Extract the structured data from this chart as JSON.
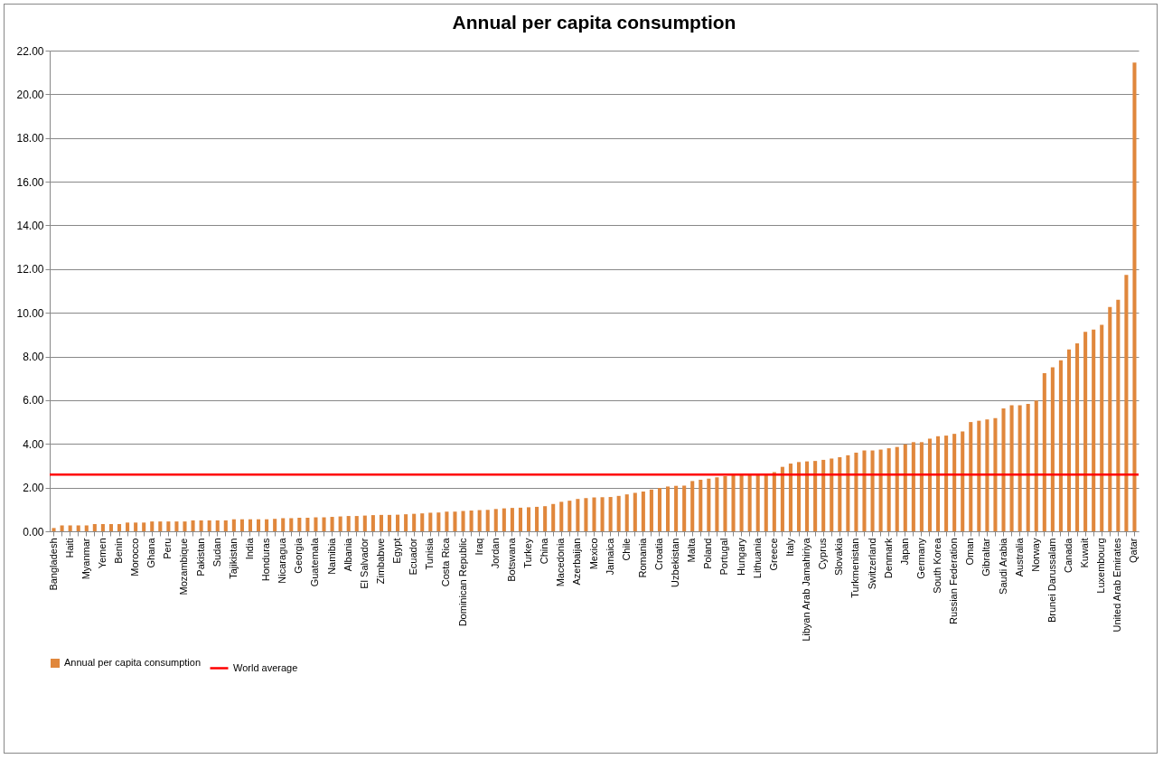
{
  "chart_data": {
    "type": "bar",
    "title": "Annual per capita consumption",
    "categories": [
      "Bangladesh",
      null,
      "Haiti",
      null,
      "Myanmar",
      null,
      "Yemen",
      null,
      "Benin",
      null,
      "Morocco",
      null,
      "Ghana",
      null,
      "Peru",
      null,
      "Mozambique",
      null,
      "Pakistan",
      null,
      "Sudan",
      null,
      "Tajikistan",
      null,
      "India",
      null,
      "Honduras",
      null,
      "Nicaragua",
      null,
      "Georgia",
      null,
      "Guatemala",
      null,
      "Namibia",
      null,
      "Albania",
      null,
      "El Salvador",
      null,
      "Zimbabwe",
      null,
      "Egypt",
      null,
      "Ecuador",
      null,
      "Tunisia",
      null,
      "Costa Rica",
      null,
      "Dominican Republic",
      null,
      "Iraq",
      null,
      "Jordan",
      null,
      "Botswana",
      null,
      "Turkey",
      null,
      "China",
      null,
      "Macedonia",
      null,
      "Azerbaijan",
      null,
      "Mexico",
      null,
      "Jamaica",
      null,
      "Chile",
      null,
      "Romania",
      null,
      "Croatia",
      null,
      "Uzbekistan",
      null,
      "Malta",
      null,
      "Poland",
      null,
      "Portugal",
      null,
      "Hungary",
      null,
      "Lithuania",
      null,
      "Greece",
      null,
      "Italy",
      null,
      "Libyan Arab Jamahiriya",
      null,
      "Cyprus",
      null,
      "Slovakia",
      null,
      "Turkmenistan",
      null,
      "Switzerland",
      null,
      "Denmark",
      null,
      "Japan",
      null,
      "Germany",
      null,
      "South Korea",
      null,
      "Russian Federation",
      null,
      "Oman",
      null,
      "Gibraltar",
      null,
      "Saudi Arabia",
      null,
      "Australia",
      null,
      "Norway",
      null,
      "Brunei Darussalam",
      null,
      "Canada",
      null,
      "Kuwait",
      null,
      "Luxembourg",
      null,
      "United Arab Emirates",
      null,
      "Qatar"
    ],
    "series": [
      {
        "name": "Annual per capita consumption",
        "color": "#e0873c",
        "values": [
          0.15,
          0.27,
          0.27,
          0.27,
          0.27,
          0.33,
          0.33,
          0.33,
          0.33,
          0.4,
          0.4,
          0.4,
          0.45,
          0.45,
          0.45,
          0.45,
          0.45,
          0.5,
          0.5,
          0.5,
          0.5,
          0.5,
          0.55,
          0.55,
          0.55,
          0.55,
          0.55,
          0.57,
          0.6,
          0.6,
          0.62,
          0.62,
          0.64,
          0.64,
          0.66,
          0.68,
          0.7,
          0.7,
          0.72,
          0.74,
          0.75,
          0.75,
          0.76,
          0.78,
          0.8,
          0.82,
          0.85,
          0.86,
          0.9,
          0.9,
          0.93,
          0.95,
          0.97,
          0.98,
          1.02,
          1.05,
          1.07,
          1.08,
          1.1,
          1.12,
          1.15,
          1.25,
          1.35,
          1.4,
          1.48,
          1.52,
          1.55,
          1.56,
          1.57,
          1.62,
          1.69,
          1.76,
          1.82,
          1.91,
          1.98,
          2.05,
          2.08,
          2.09,
          2.3,
          2.36,
          2.41,
          2.47,
          2.53,
          2.6,
          2.6,
          2.6,
          2.62,
          2.62,
          2.71,
          2.95,
          3.1,
          3.17,
          3.2,
          3.22,
          3.27,
          3.33,
          3.39,
          3.48,
          3.6,
          3.7,
          3.7,
          3.74,
          3.8,
          3.86,
          3.98,
          4.08,
          4.08,
          4.24,
          4.35,
          4.38,
          4.46,
          4.57,
          5.0,
          5.06,
          5.12,
          5.18,
          5.62,
          5.77,
          5.77,
          5.83,
          5.99,
          7.24,
          7.51,
          7.83,
          8.32,
          8.6,
          9.13,
          9.23,
          9.45,
          10.27,
          10.6,
          11.73,
          21.45
        ]
      }
    ],
    "ref_lines": [
      {
        "axis": "y",
        "value": 2.6,
        "label": "World average",
        "color": "#ff0000"
      }
    ],
    "ylim": [
      0,
      22
    ],
    "yticks": [
      {
        "value": 0,
        "label": "0.00"
      },
      {
        "value": 2,
        "label": "2.00"
      },
      {
        "value": 4,
        "label": "4.00"
      },
      {
        "value": 6,
        "label": "6.00"
      },
      {
        "value": 8,
        "label": "8.00"
      },
      {
        "value": 10,
        "label": "10.00"
      },
      {
        "value": 12,
        "label": "12.00"
      },
      {
        "value": 14,
        "label": "14.00"
      },
      {
        "value": 16,
        "label": "16.00"
      },
      {
        "value": 18,
        "label": "18.00"
      },
      {
        "value": 20,
        "label": "20.00"
      },
      {
        "value": 22,
        "label": "22.00"
      }
    ],
    "grid": "y",
    "legend": "bottom"
  }
}
